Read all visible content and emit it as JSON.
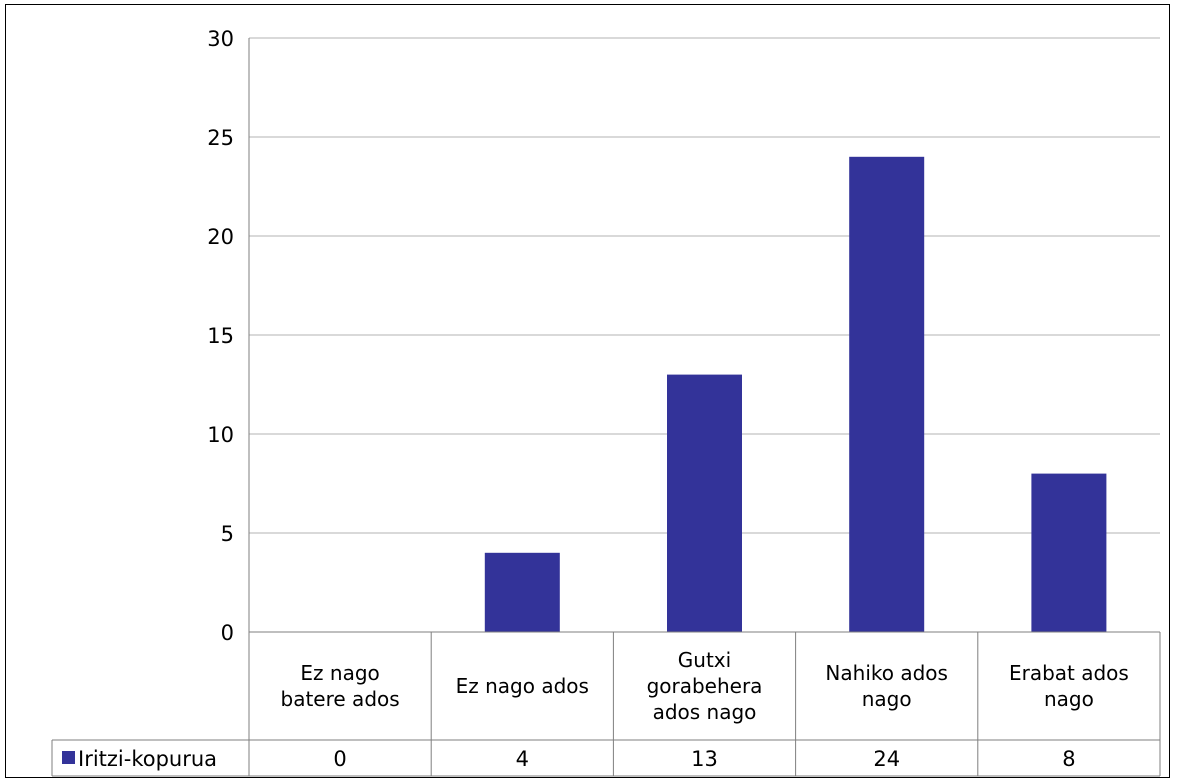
{
  "chart_data": {
    "type": "bar",
    "categories": [
      [
        "Ez nago",
        "batere ados"
      ],
      [
        "Ez nago ados"
      ],
      [
        "Gutxi",
        "gorabehera",
        "ados nago"
      ],
      [
        "Nahiko ados",
        "nago"
      ],
      [
        "Erabat ados",
        "nago"
      ]
    ],
    "series": [
      {
        "name": "Iritzi-kopurua",
        "values": [
          0,
          4,
          13,
          24,
          8
        ],
        "color": "#333399"
      }
    ],
    "ylim": [
      0,
      30
    ],
    "yticks": [
      0,
      5,
      10,
      15,
      20,
      25,
      30
    ],
    "grid": true,
    "legend": "data-table"
  }
}
